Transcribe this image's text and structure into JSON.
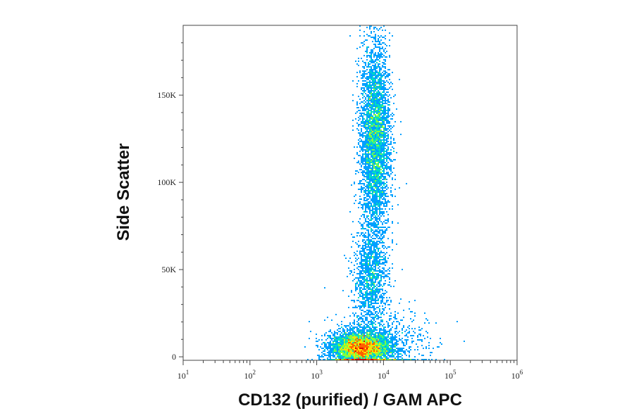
{
  "chart_data": {
    "type": "scatter",
    "subtype": "flow-cytometry-density-dot-plot",
    "xlabel": "CD132 (purified) / GAM APC",
    "ylabel": "Side Scatter",
    "x_scale": "log",
    "xlim": [
      10,
      1000000
    ],
    "ylim": [
      -2000,
      190000
    ],
    "x_ticks": [
      {
        "value": 10,
        "base": "10",
        "exp": "1"
      },
      {
        "value": 100,
        "base": "10",
        "exp": "2"
      },
      {
        "value": 1000,
        "base": "10",
        "exp": "3"
      },
      {
        "value": 10000,
        "base": "10",
        "exp": "4"
      },
      {
        "value": 100000,
        "base": "10",
        "exp": "5"
      },
      {
        "value": 1000000,
        "base": "10",
        "exp": "6"
      }
    ],
    "y_ticks": [
      {
        "value": 0,
        "label": "0"
      },
      {
        "value": 50000,
        "label": "50K"
      },
      {
        "value": 100000,
        "label": "100K"
      },
      {
        "value": 150000,
        "label": "150K"
      }
    ],
    "grid": false,
    "color_scale": [
      "#0000ff",
      "#00a0ff",
      "#00e0c0",
      "#80ff40",
      "#ffe000",
      "#ff6000",
      "#e00000"
    ],
    "populations": [
      {
        "x_center": 4500,
        "y_center": 5000,
        "x_spread_decades": 0.22,
        "y_spread": 4500,
        "weight": 0.42
      },
      {
        "x_center": 7500,
        "y_center": 125000,
        "x_spread_decades": 0.11,
        "y_spread": 28000,
        "weight": 0.38
      },
      {
        "x_center": 6500,
        "y_center": 45000,
        "x_spread_decades": 0.13,
        "y_spread": 15000,
        "weight": 0.12
      },
      {
        "x_center": 9000,
        "y_center": 8000,
        "x_spread_decades": 0.35,
        "y_spread": 10000,
        "weight": 0.08
      }
    ]
  }
}
